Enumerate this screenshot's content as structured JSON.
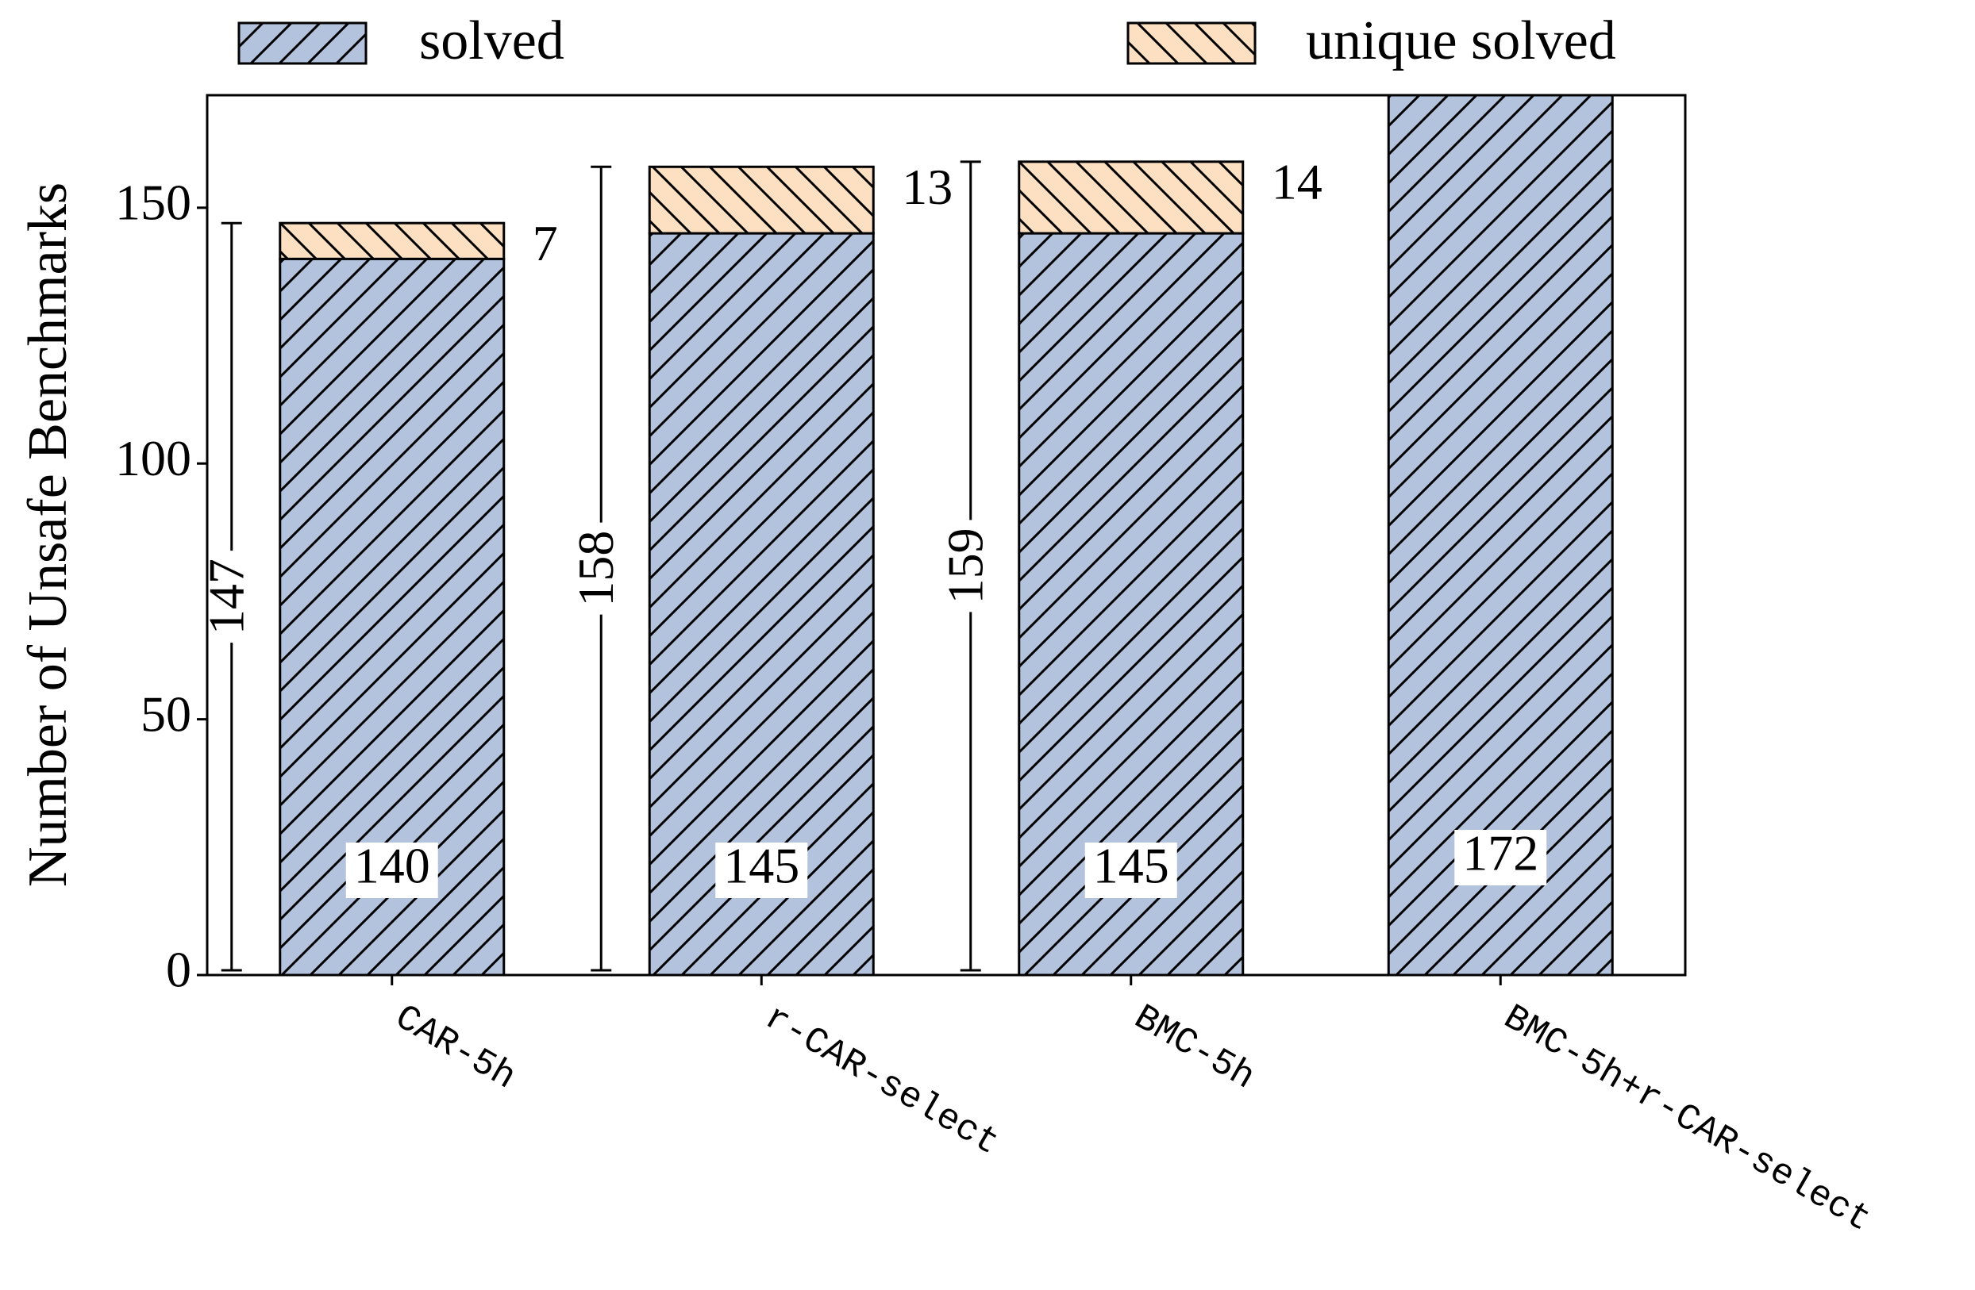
{
  "chart_data": {
    "type": "stacked-bar",
    "y_label": "Number of Unsafe Benchmarks",
    "categories": [
      "CAR-5h",
      "r-CAR-select",
      "BMC-5h",
      "BMC-5h+r-CAR-select"
    ],
    "series": [
      {
        "name": "solved",
        "color": "#b4c3dd",
        "hatch": "/",
        "values": [
          140,
          145,
          145,
          172
        ]
      },
      {
        "name": "unique solved",
        "color": "#fde0c2",
        "hatch": "\\",
        "values": [
          7,
          13,
          14,
          null
        ]
      }
    ],
    "totals": [
      147,
      158,
      159,
      null
    ],
    "ylim": [
      0,
      172
    ],
    "yticks": [
      0,
      50,
      100,
      150
    ],
    "grid": false
  }
}
